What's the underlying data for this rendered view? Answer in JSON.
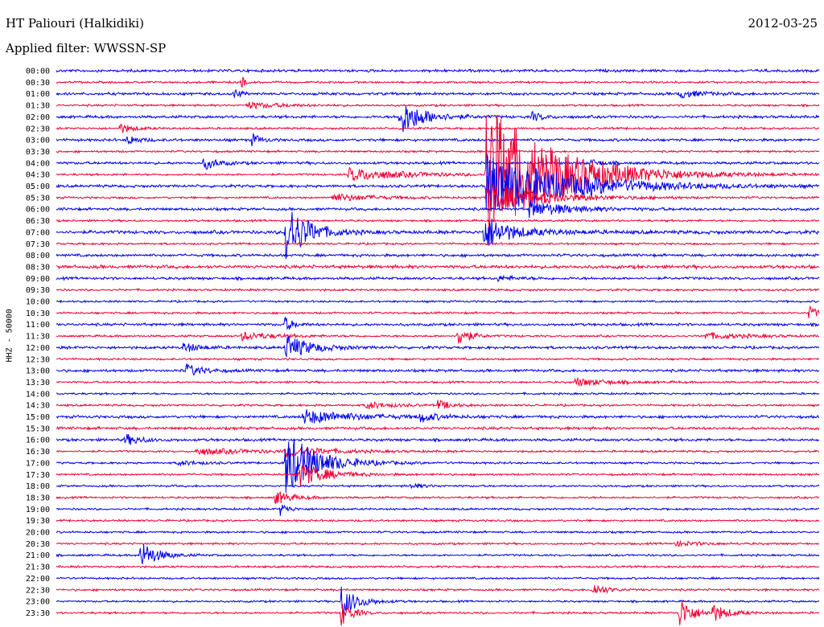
{
  "header": {
    "station": "HT Paliouri (Halkidiki)",
    "date": "2012-03-25",
    "filter": "Applied filter: WWSSN-SP",
    "channel": "HHZ - 50000"
  },
  "colors": {
    "even": "#0000ee",
    "odd": "#ee0033",
    "text": "#000000"
  },
  "chart_data": {
    "type": "line",
    "title": "HT Paliouri (Halkidiki)",
    "subtitle": "Applied filter: WWSSN-SP",
    "ylabel": "HHZ - 50000",
    "xlabel": "",
    "x_range_minutes": [
      0,
      30
    ],
    "grid": false,
    "row_labels": [
      "00:00",
      "00:30",
      "01:00",
      "01:30",
      "02:00",
      "02:30",
      "03:00",
      "03:30",
      "04:00",
      "04:30",
      "05:00",
      "05:30",
      "06:00",
      "06:30",
      "07:00",
      "07:30",
      "08:00",
      "08:30",
      "09:00",
      "09:30",
      "10:00",
      "10:30",
      "11:00",
      "11:30",
      "12:00",
      "12:30",
      "13:00",
      "13:30",
      "14:00",
      "14:30",
      "15:00",
      "15:30",
      "16:00",
      "16:30",
      "17:00",
      "17:30",
      "18:00",
      "18:30",
      "19:00",
      "19:30",
      "20:00",
      "20:30",
      "21:00",
      "21:30",
      "22:00",
      "22:30",
      "23:00",
      "23:30"
    ],
    "noise_level": [
      2,
      1.5,
      2,
      1.5,
      2,
      1.5,
      2,
      1.5,
      2,
      1.5,
      2,
      1.5,
      2,
      1.5,
      2.5,
      1.5,
      2,
      2.5,
      2,
      1.5,
      1.5,
      1.5,
      2,
      1.5,
      2,
      1.5,
      2,
      1.5,
      1.5,
      1.5,
      2,
      2,
      2,
      1.5,
      1.5,
      1.5,
      1.5,
      1.5,
      1.5,
      1.5,
      1.5,
      1.5,
      1.5,
      1.5,
      1.5,
      1.5,
      1.5,
      1.5
    ],
    "events": [
      {
        "row": 1,
        "minute": 7.3,
        "amp": 10,
        "dur": 0.1
      },
      {
        "row": 2,
        "minute": 7.0,
        "amp": 7,
        "dur": 0.2
      },
      {
        "row": 2,
        "minute": 24.5,
        "amp": 5,
        "dur": 0.8
      },
      {
        "row": 3,
        "minute": 7.5,
        "amp": 4,
        "dur": 1.2
      },
      {
        "row": 4,
        "minute": 13.5,
        "amp": 22,
        "dur": 0.9
      },
      {
        "row": 4,
        "minute": 18.7,
        "amp": 6,
        "dur": 0.4
      },
      {
        "row": 5,
        "minute": 2.5,
        "amp": 6,
        "dur": 0.5
      },
      {
        "row": 6,
        "minute": 2.8,
        "amp": 6,
        "dur": 0.4
      },
      {
        "row": 6,
        "minute": 7.7,
        "amp": 8,
        "dur": 0.3
      },
      {
        "row": 8,
        "minute": 5.8,
        "amp": 8,
        "dur": 0.5
      },
      {
        "row": 8,
        "minute": 21.0,
        "amp": 4,
        "dur": 0.5
      },
      {
        "row": 9,
        "minute": 11.5,
        "amp": 8,
        "dur": 2.0
      },
      {
        "row": 9,
        "minute": 16.9,
        "amp": 90,
        "dur": 2.5
      },
      {
        "row": 10,
        "minute": 16.9,
        "amp": 40,
        "dur": 3.0
      },
      {
        "row": 11,
        "minute": 10.8,
        "amp": 5,
        "dur": 1.5
      },
      {
        "row": 11,
        "minute": 16.9,
        "amp": 20,
        "dur": 2.0
      },
      {
        "row": 12,
        "minute": 18.6,
        "amp": 10,
        "dur": 1.5
      },
      {
        "row": 14,
        "minute": 9.0,
        "amp": 40,
        "dur": 0.8
      },
      {
        "row": 14,
        "minute": 16.8,
        "amp": 20,
        "dur": 0.6
      },
      {
        "row": 14,
        "minute": 17.0,
        "amp": 6,
        "dur": 2.0
      },
      {
        "row": 18,
        "minute": 17.3,
        "amp": 3,
        "dur": 0.8
      },
      {
        "row": 21,
        "minute": 29.6,
        "amp": 8,
        "dur": 0.4
      },
      {
        "row": 22,
        "minute": 9.0,
        "amp": 9,
        "dur": 0.3
      },
      {
        "row": 23,
        "minute": 7.3,
        "amp": 5,
        "dur": 1.2
      },
      {
        "row": 23,
        "minute": 15.8,
        "amp": 14,
        "dur": 0.4
      },
      {
        "row": 23,
        "minute": 25.5,
        "amp": 4,
        "dur": 1.5
      },
      {
        "row": 24,
        "minute": 5.0,
        "amp": 6,
        "dur": 0.6
      },
      {
        "row": 24,
        "minute": 9.0,
        "amp": 16,
        "dur": 0.9
      },
      {
        "row": 26,
        "minute": 5.1,
        "amp": 8,
        "dur": 0.6
      },
      {
        "row": 27,
        "minute": 20.4,
        "amp": 5,
        "dur": 1.2
      },
      {
        "row": 29,
        "minute": 12.2,
        "amp": 5,
        "dur": 0.8
      },
      {
        "row": 29,
        "minute": 15.0,
        "amp": 6,
        "dur": 0.5
      },
      {
        "row": 30,
        "minute": 9.7,
        "amp": 9,
        "dur": 1.8
      },
      {
        "row": 30,
        "minute": 14.3,
        "amp": 6,
        "dur": 0.6
      },
      {
        "row": 32,
        "minute": 2.7,
        "amp": 7,
        "dur": 0.6
      },
      {
        "row": 33,
        "minute": 5.5,
        "amp": 4,
        "dur": 2.0
      },
      {
        "row": 33,
        "minute": 9.0,
        "amp": 6,
        "dur": 1.5
      },
      {
        "row": 34,
        "minute": 4.8,
        "amp": 3,
        "dur": 0.8
      },
      {
        "row": 34,
        "minute": 9.0,
        "amp": 40,
        "dur": 1.2
      },
      {
        "row": 35,
        "minute": 9.5,
        "amp": 16,
        "dur": 1.0
      },
      {
        "row": 36,
        "minute": 13.9,
        "amp": 3,
        "dur": 0.6
      },
      {
        "row": 37,
        "minute": 8.6,
        "amp": 9,
        "dur": 0.6
      },
      {
        "row": 38,
        "minute": 8.8,
        "amp": 8,
        "dur": 0.3
      },
      {
        "row": 41,
        "minute": 24.3,
        "amp": 3,
        "dur": 1.0
      },
      {
        "row": 42,
        "minute": 3.3,
        "amp": 18,
        "dur": 0.6
      },
      {
        "row": 45,
        "minute": 21.1,
        "amp": 8,
        "dur": 0.5
      },
      {
        "row": 46,
        "minute": 11.2,
        "amp": 20,
        "dur": 0.6
      },
      {
        "row": 47,
        "minute": 11.2,
        "amp": 16,
        "dur": 0.4
      },
      {
        "row": 47,
        "minute": 24.5,
        "amp": 20,
        "dur": 0.5
      },
      {
        "row": 47,
        "minute": 25.8,
        "amp": 10,
        "dur": 0.6
      }
    ]
  }
}
